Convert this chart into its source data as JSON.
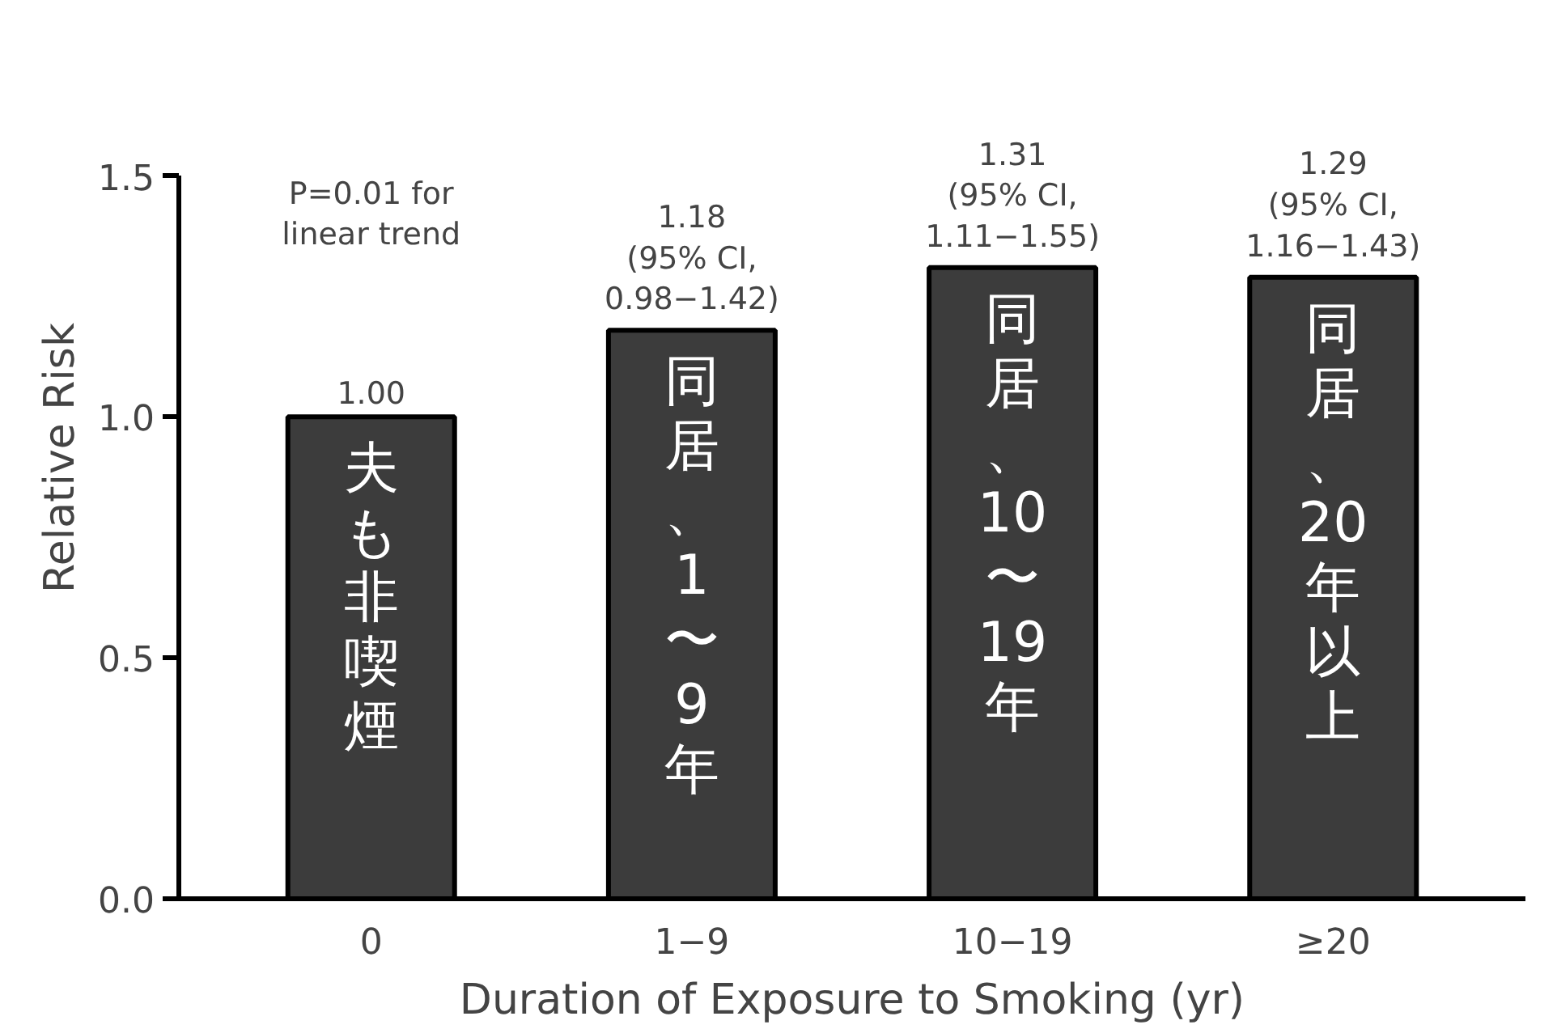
{
  "chart_data": {
    "type": "bar",
    "xlabel": "Duration of Exposure to Smoking (yr)",
    "ylabel": "Relative Risk",
    "categories": [
      "0",
      "1−9",
      "10−19",
      "≥20"
    ],
    "values": [
      1.0,
      1.18,
      1.31,
      1.29
    ],
    "value_labels": [
      "1.00",
      "1.18\n(95% CI,\n0.98−1.42)",
      "1.31\n(95% CI,\n1.11−1.55)",
      "1.29\n(95% CI,\n1.16−1.43)"
    ],
    "color": "#3c3c3c",
    "ylim": [
      0,
      1.5
    ],
    "yticks": [
      {
        "value": 0,
        "label": "0.0"
      },
      {
        "value": 0.5,
        "label": "0.5"
      },
      {
        "value": 1.0,
        "label": "1.0"
      },
      {
        "value": 1.5,
        "label": "1.5"
      }
    ],
    "grid": false,
    "annotations": [
      "P=0.01 for\nlinear trend",
      "夫も非喫煙",
      "同居、1〜9年",
      "同居、10〜19年",
      "同居、20年以上"
    ]
  }
}
